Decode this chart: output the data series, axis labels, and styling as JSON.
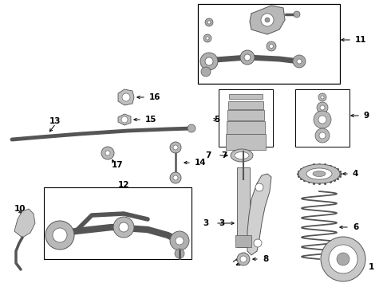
{
  "bg_color": "#ffffff",
  "fig_width": 4.9,
  "fig_height": 3.6,
  "dpi": 100,
  "gray": "#555555",
  "lgray": "#999999",
  "dgray": "#333333"
}
